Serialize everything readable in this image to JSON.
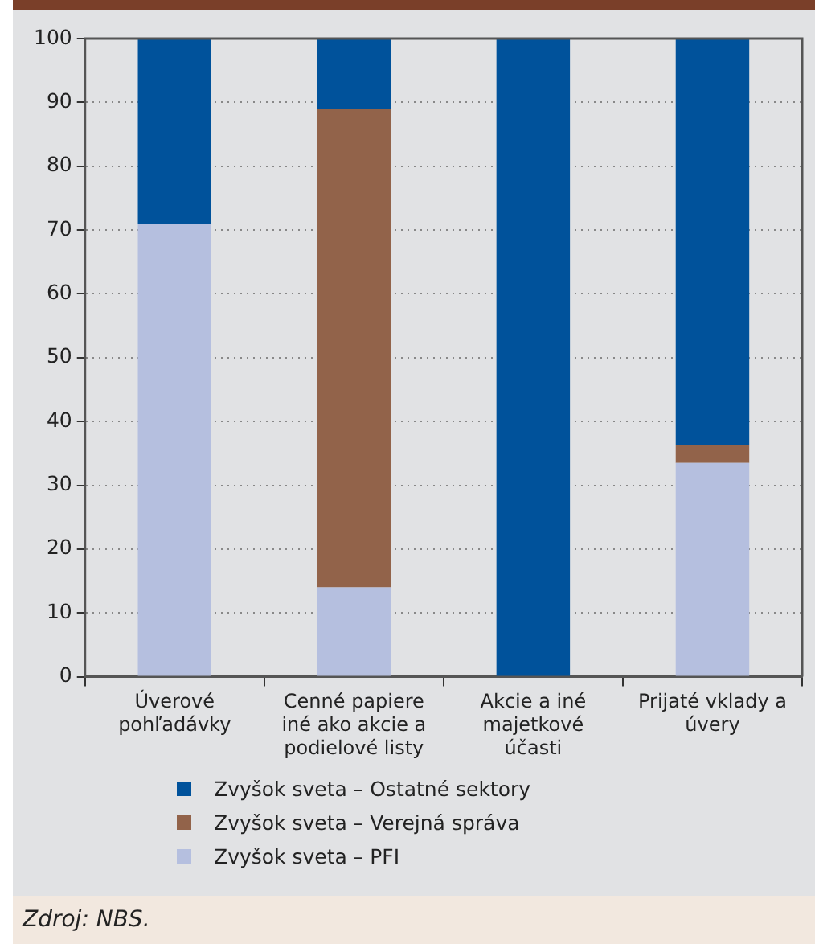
{
  "chart_data": {
    "type": "bar",
    "stacked": true,
    "categories": [
      "Úverové pohľadávky",
      "Cenné papiere iné ako akcie a podielové listy",
      "Akcie a iné majetkové účasti",
      "Prijaté vklady a úvery"
    ],
    "series": [
      {
        "name": "Zvyšok sveta – PFI",
        "color": "#b5bfdf",
        "values": [
          71,
          14,
          0,
          33.5
        ]
      },
      {
        "name": "Zvyšok sveta – Verejná správa",
        "color": "#92634a",
        "values": [
          0,
          75,
          0,
          2.8
        ]
      },
      {
        "name": "Zvyšok sveta – Ostatné sektory",
        "color": "#00529b",
        "values": [
          29,
          11,
          100,
          63.7
        ]
      }
    ],
    "ylim": [
      0,
      100
    ],
    "yticks": [
      0,
      10,
      20,
      30,
      40,
      50,
      60,
      70,
      80,
      90,
      100
    ],
    "grid": "y",
    "legend": "bottom",
    "annotations": [
      "Zdroj: NBS."
    ]
  }
}
